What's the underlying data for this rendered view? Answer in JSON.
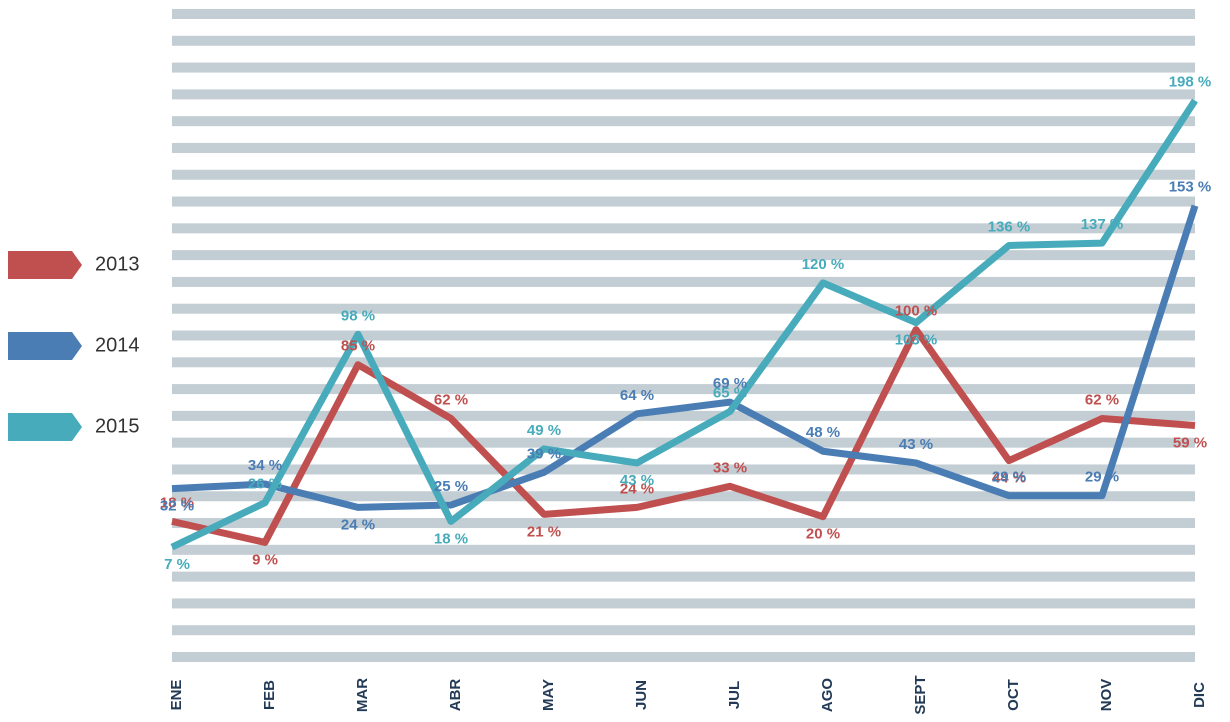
{
  "chart_data": {
    "type": "line",
    "categories": [
      "ENE",
      "FEB",
      "MAR",
      "ABR",
      "MAY",
      "JUN",
      "JUL",
      "AGO",
      "SEPT",
      "OCT",
      "NOV",
      "DIC"
    ],
    "series": [
      {
        "name": "2013",
        "color": "#c0504f",
        "values": [
          18,
          9,
          85,
          62,
          21,
          24,
          33,
          20,
          100,
          44,
          62,
          59
        ],
        "value_labels": [
          "18 %",
          "9 %",
          "85 %",
          "62 %",
          "21 %",
          "24 %",
          "33 %",
          "20 %",
          "100 %",
          "44 %",
          "62 %",
          "59 %"
        ]
      },
      {
        "name": "2014",
        "color": "#4a7db4",
        "values": [
          32,
          34,
          24,
          25,
          39,
          64,
          69,
          48,
          43,
          29,
          29,
          153
        ],
        "value_labels": [
          "32 %",
          "34 %",
          "24 %",
          "25 %",
          "39 %",
          "64 %",
          "69 %",
          "48 %",
          "43 %",
          "29 %",
          "29 %",
          "153 %"
        ]
      },
      {
        "name": "2015",
        "color": "#47abbb",
        "values": [
          7,
          26,
          98,
          18,
          49,
          43,
          65,
          120,
          103,
          136,
          137,
          198
        ],
        "value_labels": [
          "7 %",
          "26 %",
          "98 %",
          "18 %",
          "49 %",
          "43 %",
          "65 %",
          "120 %",
          "103 %",
          "136 %",
          "137 %",
          "198 %"
        ]
      }
    ],
    "ylim": [
      -40,
      235
    ]
  }
}
